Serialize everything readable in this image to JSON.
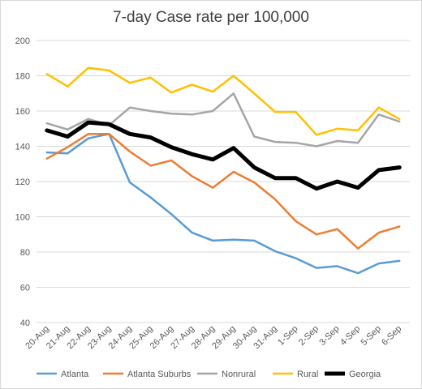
{
  "chart_data": {
    "type": "line",
    "title": "7-day Case rate per 100,000",
    "xlabel": "",
    "ylabel": "",
    "ylim": [
      40,
      200
    ],
    "yticks": [
      40,
      60,
      80,
      100,
      120,
      140,
      160,
      180,
      200
    ],
    "grid": true,
    "legend_position": "bottom",
    "categories": [
      "20-Aug",
      "21-Aug",
      "22-Aug",
      "23-Aug",
      "24-Aug",
      "25-Aug",
      "26-Aug",
      "27-Aug",
      "28-Aug",
      "29-Aug",
      "30-Aug",
      "31-Aug",
      "1-Sep",
      "2-Sep",
      "3-Sep",
      "4-Sep",
      "5-Sep",
      "6-Sep"
    ],
    "series": [
      {
        "name": "Atlanta",
        "color": "#5b9bd5",
        "stroke_width": 2.5,
        "values": [
          136.5,
          136,
          144.5,
          147,
          119.5,
          111,
          101.5,
          91,
          86.5,
          87,
          86.5,
          80.5,
          76.5,
          71,
          72,
          68,
          73.5,
          75
        ]
      },
      {
        "name": "Atlanta Suburbs",
        "color": "#ed7d31",
        "stroke_width": 2.5,
        "values": [
          133,
          139.5,
          147,
          147,
          137,
          129,
          132,
          123,
          116.5,
          125.5,
          119.5,
          110,
          97.5,
          90,
          93,
          82,
          91,
          94.5
        ]
      },
      {
        "name": "Nonrural",
        "color": "#a5a5a5",
        "stroke_width": 2.5,
        "values": [
          153,
          149.5,
          155.5,
          152,
          162,
          160,
          158.5,
          158,
          160,
          170,
          145.5,
          142.5,
          142,
          140,
          143,
          142,
          158,
          154
        ]
      },
      {
        "name": "Rural",
        "color": "#ffc000",
        "stroke_width": 2.5,
        "values": [
          181,
          174,
          184.5,
          183,
          176,
          179,
          170.5,
          175,
          171,
          180,
          170,
          159.5,
          159.5,
          146.5,
          150,
          149,
          162,
          155.5
        ]
      },
      {
        "name": "Georgia",
        "color": "#000000",
        "stroke_width": 5,
        "values": [
          149,
          145.5,
          153.5,
          152.5,
          147,
          145,
          139.5,
          135.5,
          132.5,
          139,
          128,
          122,
          122,
          116,
          120,
          116.5,
          126.5,
          128
        ]
      }
    ]
  }
}
